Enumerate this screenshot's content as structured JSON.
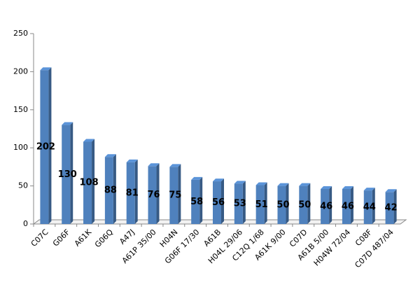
{
  "chart_data": {
    "type": "bar",
    "categories": [
      "C07C",
      "G06F",
      "A61K",
      "G06Q",
      "A47J",
      "A61P 35/00",
      "H04N",
      "G06F 17/30",
      "A61B",
      "H04L 29/06",
      "C12Q 1/68",
      "A61K 9/00",
      "C07D",
      "A61B 5/00",
      "H04W 72/04",
      "C08F",
      "C07D 487/04"
    ],
    "values": [
      202,
      130,
      108,
      88,
      81,
      76,
      75,
      58,
      56,
      53,
      51,
      50,
      50,
      46,
      46,
      44,
      42
    ],
    "color": "#4f81bd",
    "ylim": [
      0,
      250
    ],
    "yticks": [
      0,
      50,
      100,
      150,
      200,
      250
    ],
    "data_labels": true
  }
}
